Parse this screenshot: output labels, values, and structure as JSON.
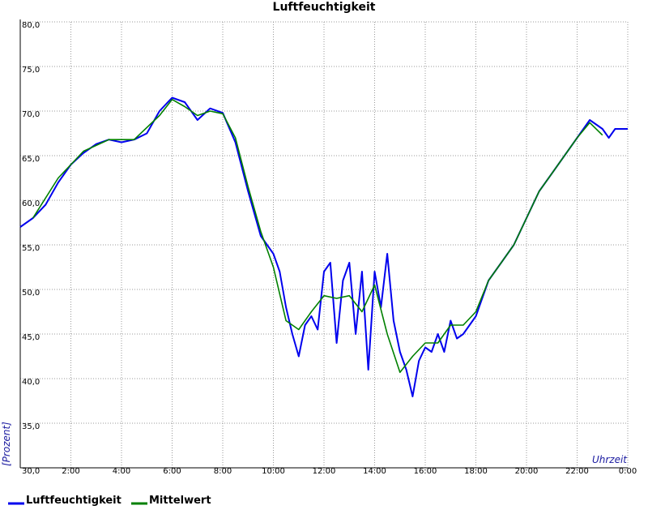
{
  "chart_data": {
    "type": "line",
    "title": "Luftfeuchtigkeit",
    "xlabel": "Uhrzeit",
    "ylabel": "[Prozent]",
    "xlim": [
      0,
      24
    ],
    "ylim": [
      30,
      80
    ],
    "xticks": [
      {
        "value": 2,
        "label": "2:00"
      },
      {
        "value": 4,
        "label": "4:00"
      },
      {
        "value": 6,
        "label": "6:00"
      },
      {
        "value": 8,
        "label": "8:00"
      },
      {
        "value": 10,
        "label": "10:00"
      },
      {
        "value": 12,
        "label": "12:00"
      },
      {
        "value": 14,
        "label": "14:00"
      },
      {
        "value": 16,
        "label": "16:00"
      },
      {
        "value": 18,
        "label": "18:00"
      },
      {
        "value": 20,
        "label": "20:00"
      },
      {
        "value": 22,
        "label": "22:00"
      },
      {
        "value": 24,
        "label": "0:00"
      }
    ],
    "yticks": [
      {
        "value": 30,
        "label": "30,0"
      },
      {
        "value": 35,
        "label": "35,0"
      },
      {
        "value": 40,
        "label": "40,0"
      },
      {
        "value": 45,
        "label": "45,0"
      },
      {
        "value": 50,
        "label": "50,0"
      },
      {
        "value": 55,
        "label": "55,0"
      },
      {
        "value": 60,
        "label": "60,0"
      },
      {
        "value": 65,
        "label": "65,0"
      },
      {
        "value": 70,
        "label": "70,0"
      },
      {
        "value": 75,
        "label": "75,0"
      },
      {
        "value": 80,
        "label": "80,0"
      }
    ],
    "grid": true,
    "legend": "bottom-left",
    "series": [
      {
        "name": "Luftfeuchtigkeit",
        "color": "#0000ee",
        "x": [
          0,
          0.5,
          1,
          1.5,
          2,
          2.5,
          3,
          3.5,
          4,
          4.5,
          5,
          5.5,
          6,
          6.5,
          7,
          7.5,
          8,
          8.5,
          9,
          9.5,
          10,
          10.25,
          10.5,
          10.75,
          11,
          11.25,
          11.5,
          11.75,
          12,
          12.25,
          12.5,
          12.75,
          13,
          13.25,
          13.5,
          13.75,
          14,
          14.25,
          14.5,
          14.75,
          15,
          15.25,
          15.5,
          15.75,
          16,
          16.25,
          16.5,
          16.75,
          17,
          17.25,
          17.5,
          18,
          18.5,
          19,
          19.5,
          20,
          20.5,
          21,
          21.5,
          22,
          22.5,
          23,
          23.25,
          23.5,
          24
        ],
        "values": [
          57.0,
          58.0,
          59.5,
          62.0,
          64.0,
          65.3,
          66.3,
          66.8,
          66.5,
          66.8,
          67.5,
          70.0,
          71.5,
          71.0,
          69.0,
          70.3,
          69.8,
          66.5,
          61.0,
          56.0,
          54.0,
          52.0,
          48.0,
          45.0,
          42.5,
          46.0,
          47.0,
          45.5,
          52.0,
          53.0,
          44.0,
          51.0,
          53.0,
          45.0,
          52.0,
          41.0,
          52.0,
          48.0,
          54.0,
          46.5,
          43.0,
          41.0,
          38.0,
          42.0,
          43.5,
          43.0,
          45.0,
          43.0,
          46.5,
          44.5,
          45.0,
          47.0,
          51.0,
          53.0,
          55.0,
          58.0,
          61.0,
          63.0,
          65.0,
          67.0,
          69.0,
          68.0,
          67.0,
          68.0,
          68.0
        ]
      },
      {
        "name": "Mittelwert",
        "color": "#008000",
        "x": [
          0.5,
          1.5,
          2.5,
          3.5,
          4.5,
          5.5,
          6,
          6.5,
          7,
          7.5,
          8,
          8.5,
          9,
          9.5,
          10,
          10.5,
          11,
          11.5,
          12,
          12.5,
          13,
          13.5,
          14,
          14.5,
          15,
          15.5,
          16,
          16.5,
          17,
          17.5,
          18,
          18.5,
          19,
          19.5,
          20,
          20.5,
          21,
          21.5,
          22,
          22.5,
          23
        ],
        "values": [
          58.0,
          62.5,
          65.5,
          66.8,
          66.8,
          69.5,
          71.3,
          70.5,
          69.5,
          70.0,
          69.7,
          67.0,
          61.5,
          56.5,
          52.5,
          46.5,
          45.5,
          47.5,
          49.3,
          49.0,
          49.3,
          47.5,
          50.5,
          45.0,
          40.7,
          42.5,
          44.0,
          44.0,
          46.0,
          46.0,
          47.5,
          51.0,
          53.0,
          55.0,
          58.0,
          61.0,
          63.0,
          65.0,
          67.0,
          68.7,
          67.3
        ]
      }
    ]
  }
}
